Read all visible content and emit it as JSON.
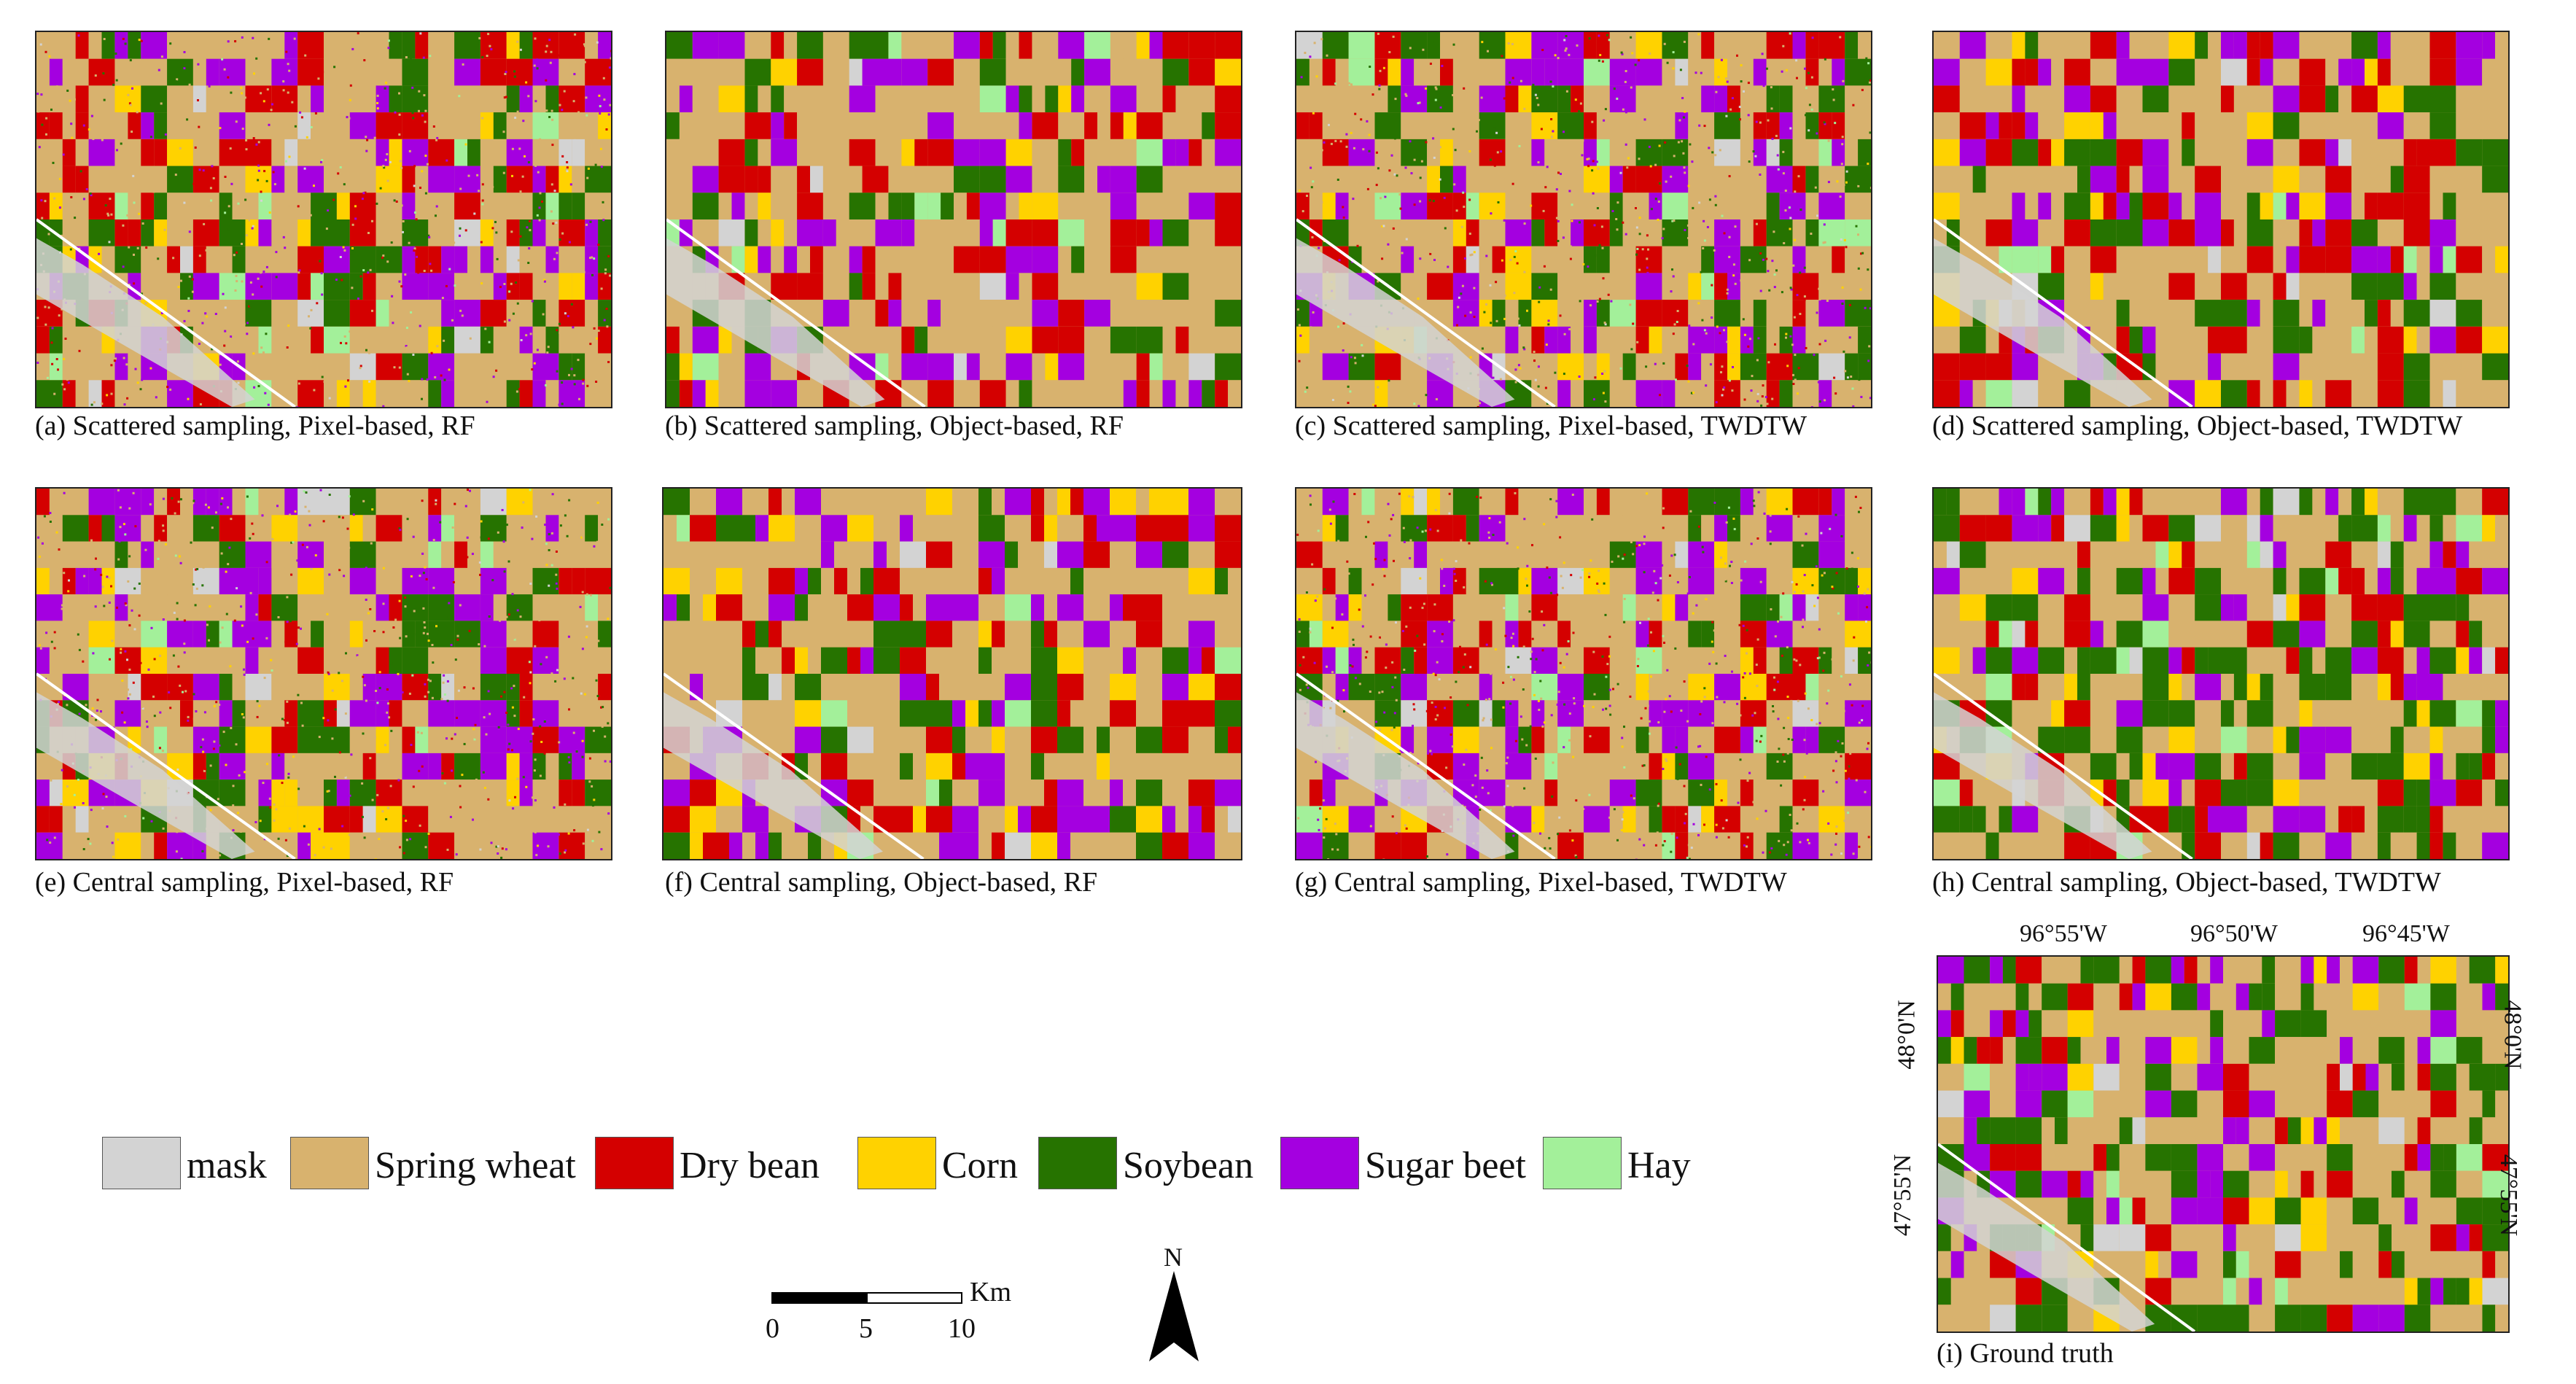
{
  "figure": {
    "panels": [
      {
        "id": "a",
        "caption": "(a) Scattered sampling, Pixel-based, RF"
      },
      {
        "id": "b",
        "caption": "(b) Scattered sampling, Object-based, RF"
      },
      {
        "id": "c",
        "caption": "(c) Scattered sampling, Pixel-based, TWDTW"
      },
      {
        "id": "d",
        "caption": "(d) Scattered sampling, Object-based, TWDTW"
      },
      {
        "id": "e",
        "caption": "(e) Central sampling, Pixel-based, RF"
      },
      {
        "id": "f",
        "caption": "(f) Central sampling, Object-based, RF"
      },
      {
        "id": "g",
        "caption": "(g) Central sampling, Pixel-based, TWDTW"
      },
      {
        "id": "h",
        "caption": "(h) Central sampling, Object-based, TWDTW"
      },
      {
        "id": "i",
        "caption": "(i) Ground truth"
      }
    ]
  },
  "legend": {
    "items": [
      {
        "label": "mask",
        "color": "#d3d3d3"
      },
      {
        "label": "Spring wheat",
        "color": "#d8b26e"
      },
      {
        "label": "Dry bean",
        "color": "#d40000"
      },
      {
        "label": "Corn",
        "color": "#ffd200"
      },
      {
        "label": "Soybean",
        "color": "#267300"
      },
      {
        "label": "Sugar beet",
        "color": "#a400e0"
      },
      {
        "label": "Hay",
        "color": "#a3f09a"
      }
    ]
  },
  "scale_bar": {
    "unit": "Km",
    "labels": [
      "0",
      "5",
      "10"
    ]
  },
  "north_arrow": {
    "label": "N"
  },
  "coordinates": {
    "longitudes": [
      "96°55'W",
      "96°50'W",
      "96°45'W"
    ],
    "latitudes": [
      "48°0'N",
      "47°55'N"
    ]
  }
}
